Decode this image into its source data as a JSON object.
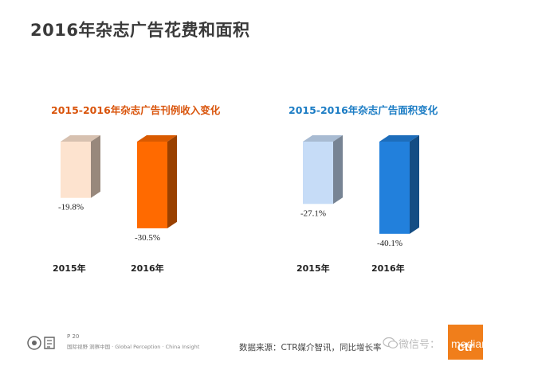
{
  "page": {
    "title": "2016年杂志广告花费和面积",
    "page_number": "P 20",
    "slogan": "国际视野 洞察中国 · Global Perception · China Insight",
    "source": "数据来源：CTR媒介智讯，同比增长率",
    "watermark": "微信号：",
    "watermark_latin": "mediam",
    "brand": "ctr"
  },
  "chart_data": [
    {
      "type": "bar",
      "title": "2015-2016年杂志广告刊例收入变化",
      "categories": [
        "2015年",
        "2016年"
      ],
      "values": [
        -19.8,
        -30.5
      ],
      "value_labels": [
        "-19.8%",
        "-30.5%"
      ],
      "colors": [
        "#fde3cf",
        "#ff6a00"
      ],
      "ylim": [
        -35,
        0
      ]
    },
    {
      "type": "bar",
      "title": "2015-2016年杂志广告面积变化",
      "categories": [
        "2015年",
        "2016年"
      ],
      "values": [
        -27.1,
        -40.1
      ],
      "value_labels": [
        "-27.1%",
        "-40.1%"
      ],
      "colors": [
        "#c6dcf7",
        "#2280dc"
      ],
      "ylim": [
        -45,
        0
      ]
    }
  ]
}
